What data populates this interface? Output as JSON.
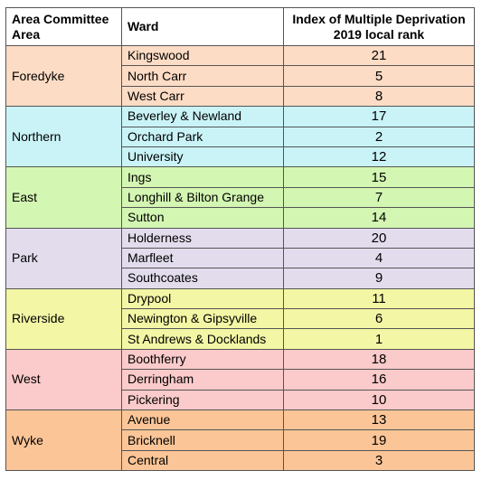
{
  "header": {
    "area": "Area Committee Area",
    "ward": "Ward",
    "rank": "Index of Multiple Deprivation 2019 local rank"
  },
  "groups": [
    {
      "area": "Foredyke",
      "color": "#fcdcc5",
      "wards": [
        {
          "ward": "Kingswood",
          "rank": "21"
        },
        {
          "ward": "North Carr",
          "rank": "5"
        },
        {
          "ward": "West Carr",
          "rank": "8"
        }
      ]
    },
    {
      "area": "Northern",
      "color": "#c9f3f7",
      "wards": [
        {
          "ward": "Beverley & Newland",
          "rank": "17"
        },
        {
          "ward": "Orchard Park",
          "rank": "2"
        },
        {
          "ward": "University",
          "rank": "12"
        }
      ]
    },
    {
      "area": "East",
      "color": "#d3f6b2",
      "wards": [
        {
          "ward": "Ings",
          "rank": "15"
        },
        {
          "ward": "Longhill & Bilton Grange",
          "rank": "7"
        },
        {
          "ward": "Sutton",
          "rank": "14"
        }
      ]
    },
    {
      "area": "Park",
      "color": "#e2dced",
      "wards": [
        {
          "ward": "Holderness",
          "rank": "20"
        },
        {
          "ward": "Marfleet",
          "rank": "4"
        },
        {
          "ward": "Southcoates",
          "rank": "9"
        }
      ]
    },
    {
      "area": "Riverside",
      "color": "#f3f6a4",
      "wards": [
        {
          "ward": "Drypool",
          "rank": "11"
        },
        {
          "ward": "Newington & Gipsyville",
          "rank": "6"
        },
        {
          "ward": "St Andrews & Docklands",
          "rank": "1"
        }
      ]
    },
    {
      "area": "West",
      "color": "#fbcaca",
      "wards": [
        {
          "ward": "Boothferry",
          "rank": "18"
        },
        {
          "ward": "Derringham",
          "rank": "16"
        },
        {
          "ward": "Pickering",
          "rank": "10"
        }
      ]
    },
    {
      "area": "Wyke",
      "color": "#fbc597",
      "wards": [
        {
          "ward": "Avenue",
          "rank": "13"
        },
        {
          "ward": "Bricknell",
          "rank": "19"
        },
        {
          "ward": "Central",
          "rank": "3"
        }
      ]
    }
  ]
}
